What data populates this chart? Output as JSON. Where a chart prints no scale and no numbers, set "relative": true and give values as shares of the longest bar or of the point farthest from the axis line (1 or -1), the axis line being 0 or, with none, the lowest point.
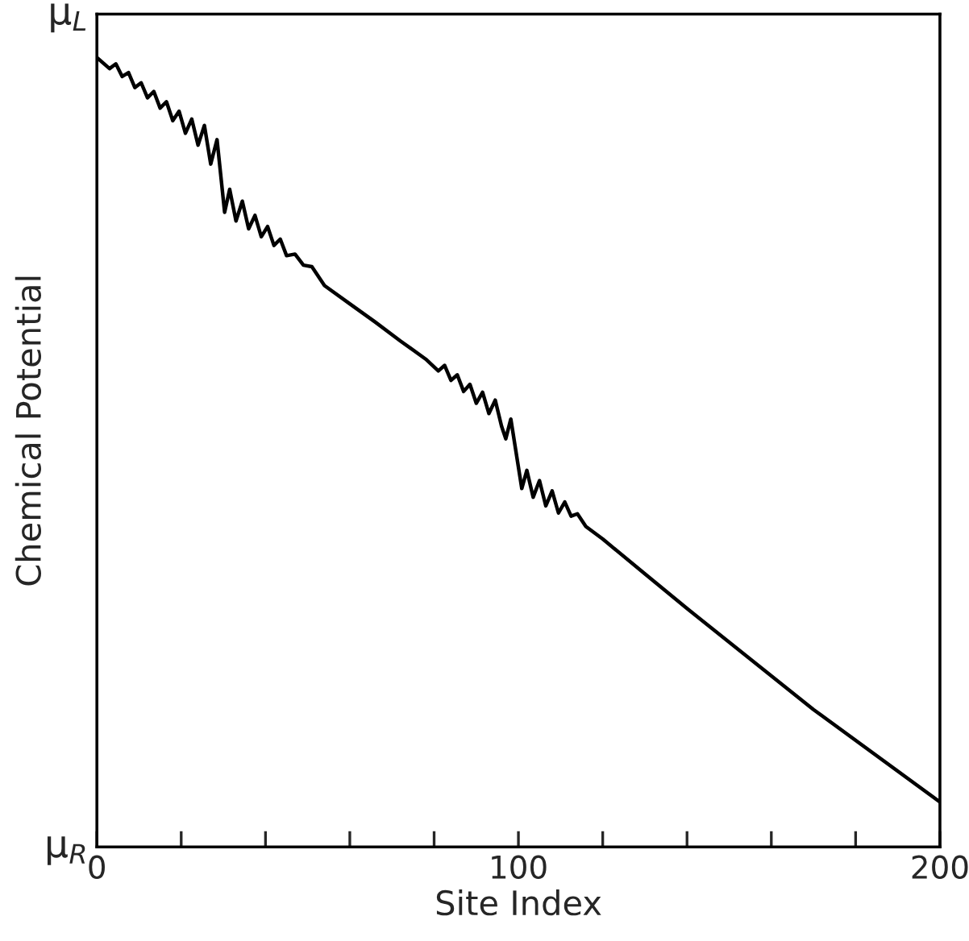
{
  "chart_data": {
    "type": "line",
    "xlabel": "Site Index",
    "ylabel": "Chemical Potential",
    "relative": true,
    "annotations": [
      "μ$_{R}$",
      "μ$_{L}$"
    ],
    "x": [
      0,
      3,
      4.5,
      6,
      7.5,
      9,
      10.5,
      12,
      13.5,
      15,
      16.5,
      18,
      19.5,
      21,
      22.5,
      24,
      25.5,
      27,
      28.5,
      30.3,
      31.5,
      33,
      34.5,
      36,
      37.5,
      39,
      40.5,
      42,
      43.5,
      45,
      47,
      49,
      51,
      54,
      60,
      66,
      72,
      78,
      81,
      82.5,
      84,
      85.5,
      87,
      88.5,
      90,
      91.5,
      93,
      94.5,
      96,
      97,
      98.2,
      100.8,
      102,
      103.5,
      105,
      106.5,
      108,
      109.5,
      111,
      112.5,
      114,
      116,
      120,
      130,
      140,
      170,
      200
    ],
    "series": [
      {
        "color": "#000000",
        "values": [
          1,
          0.986,
          0.992,
          0.976,
          0.981,
          0.962,
          0.968,
          0.949,
          0.957,
          0.936,
          0.944,
          0.92,
          0.932,
          0.904,
          0.922,
          0.889,
          0.914,
          0.865,
          0.896,
          0.804,
          0.833,
          0.793,
          0.818,
          0.783,
          0.8,
          0.773,
          0.786,
          0.762,
          0.77,
          0.749,
          0.751,
          0.737,
          0.735,
          0.711,
          0.688,
          0.665,
          0.641,
          0.618,
          0.603,
          0.61,
          0.591,
          0.598,
          0.577,
          0.586,
          0.562,
          0.576,
          0.549,
          0.566,
          0.533,
          0.517,
          0.542,
          0.454,
          0.477,
          0.443,
          0.464,
          0.432,
          0.451,
          0.423,
          0.437,
          0.419,
          0.422,
          0.406,
          0.39,
          0.346,
          0.302,
          0.174,
          0.057
        ]
      }
    ],
    "xlim": [
      0,
      200
    ],
    "xticks": [
      0,
      {
        "value": 20,
        "label": null
      },
      {
        "value": 40,
        "label": null
      },
      {
        "value": 60,
        "label": null
      },
      {
        "value": 80,
        "label": null
      },
      100,
      {
        "value": 120,
        "label": null
      },
      {
        "value": 140,
        "label": null
      },
      {
        "value": 160,
        "label": null
      },
      {
        "value": 180,
        "label": null
      },
      200
    ],
    "grid": false,
    "legend": false,
    "marker": "none",
    "line_style": "solid"
  }
}
